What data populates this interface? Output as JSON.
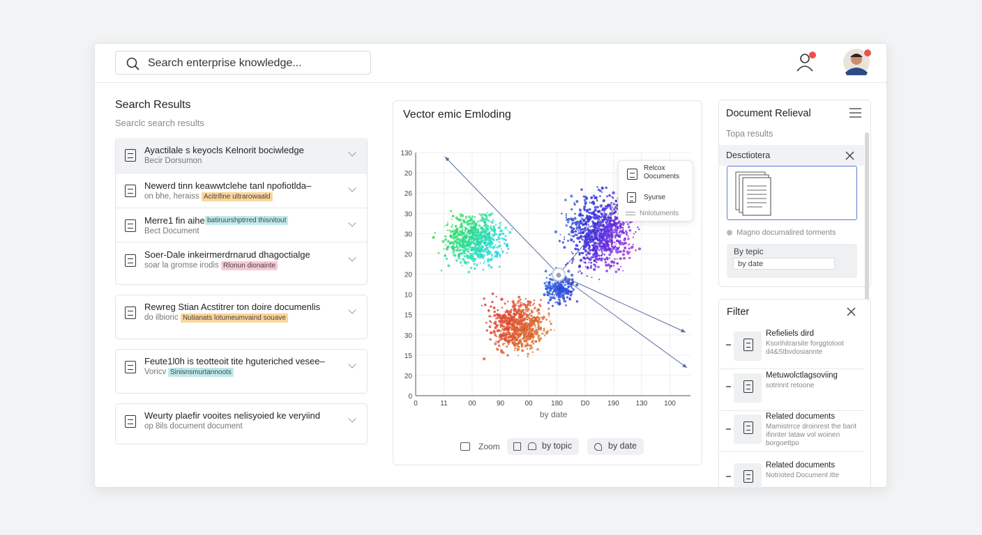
{
  "header": {
    "search_placeholder": "Search enterprise knowledge..."
  },
  "results": {
    "title": "Search Results",
    "subtitle": "Searclc search results",
    "items": [
      {
        "title": "Ayactilale s keyocls Kelnorit bociwledge",
        "meta": "Becir Dorsumon"
      },
      {
        "title": "Newerd tinn keawwtclehe tanl npofiotlda–",
        "meta": "on bhe, heraiss",
        "tag": "Acitrifine ultrarowaald"
      },
      {
        "title": "Merre1 fin aihe",
        "title_tag": "batiruurshptrred thisnitout",
        "meta": "Bect Document"
      },
      {
        "title": "Soer-Dale inkeirmerdrnarud dhagoctialge",
        "meta": "soar la gromse irodis",
        "tag": "Rlonun dionainte"
      },
      {
        "title": "Rewreg Stian Acstitrer ton doire documenlis",
        "meta": "do ilbioric",
        "tag": "Nutianats lotumeumvaind souave"
      },
      {
        "title": "Feute1l0h is teotteoit tite hguteriched vesee–",
        "meta": "Voricv",
        "tag": "Sinisnsmurtannoots"
      },
      {
        "title": "Weurty plaefir vooites nelisyoied ke veryiind",
        "meta": "op 8ils document document"
      }
    ]
  },
  "embedding": {
    "title": "Vector emic Emloding",
    "y_labels": [
      "130",
      "20",
      "26",
      "30",
      "30",
      "20",
      "20",
      "10",
      "15",
      "30",
      "15",
      "20",
      "0"
    ],
    "x_labels": [
      "0",
      "11",
      "00",
      "90",
      "00",
      "180",
      "D0",
      "190",
      "130",
      "100"
    ],
    "x_axis_label": "by date",
    "tooltip": [
      "Relcox Oocuments",
      "Syurse",
      "Nnlotuments"
    ],
    "controls": [
      "Zoom",
      "by topic",
      "by date"
    ]
  },
  "retrieval": {
    "title": "Document Relieval",
    "subtitle": "Topa results",
    "section": "Desctiotera",
    "note": "Magno documalired torments",
    "sort_label": "By tepic",
    "sort_value": "by date"
  },
  "filter": {
    "title": "Filter",
    "items": [
      {
        "title": "Refieliels dird",
        "text": "Ksorihitrarsite forggtotoot d4&Stbvdosiannte"
      },
      {
        "title": "Metuwolctlagsoviing",
        "text": "sotrinnt retoone"
      },
      {
        "title": "Related documents",
        "text": "Mamistrrce droinrest the barit ifinnter lataw vol woinen borgoettpo"
      },
      {
        "title": "Related documents",
        "text": "Notrioted Document itte"
      }
    ]
  }
}
